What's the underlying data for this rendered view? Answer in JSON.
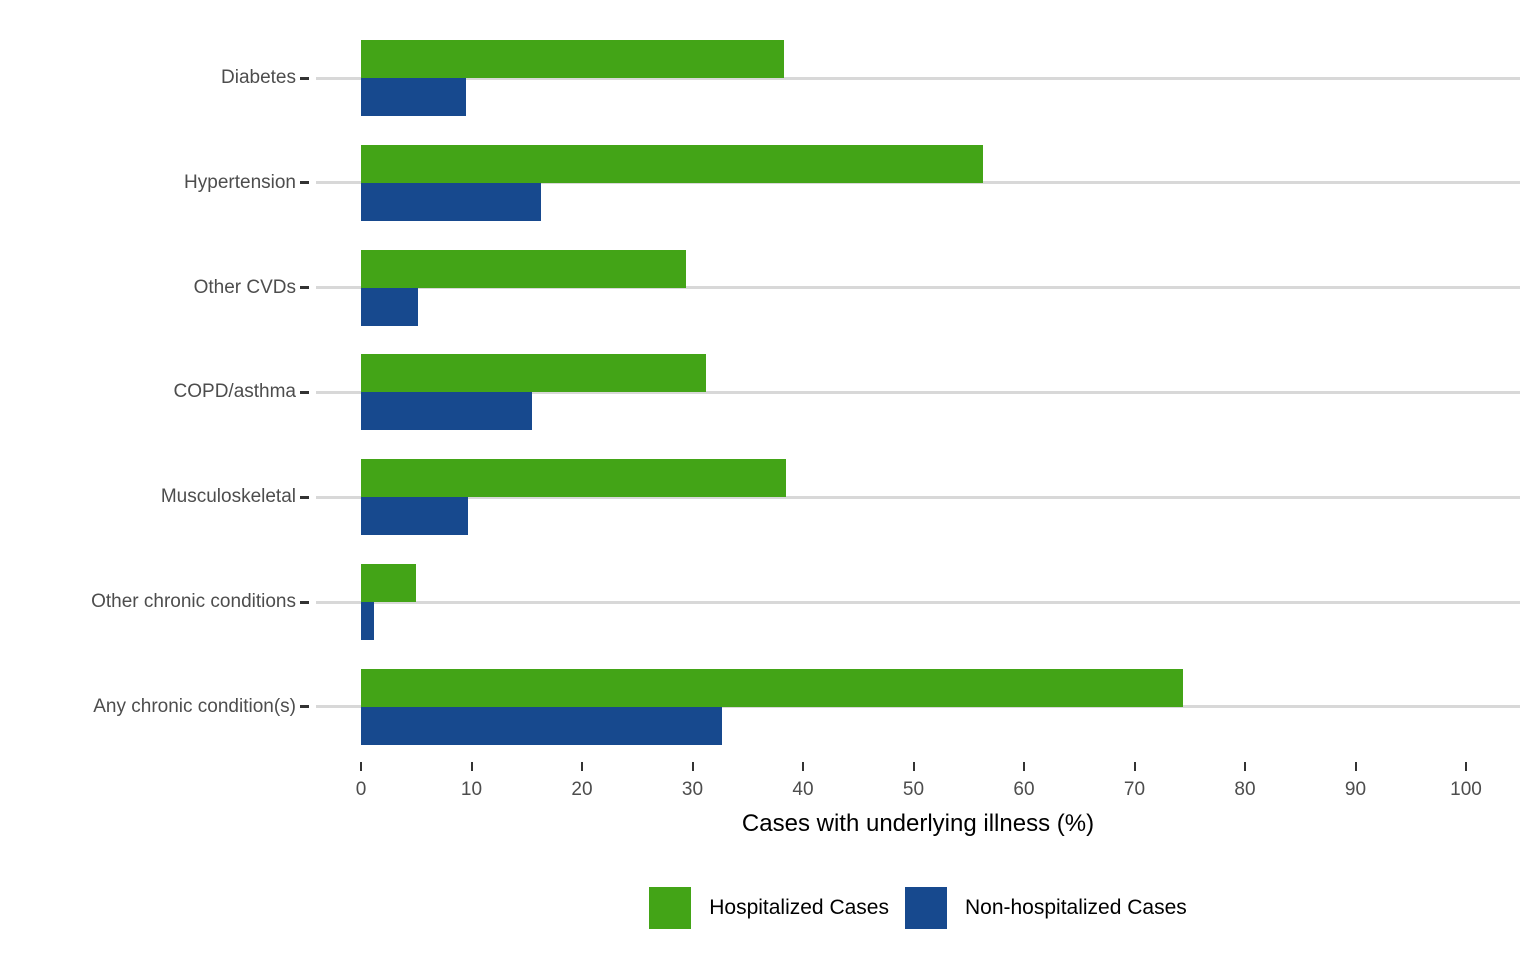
{
  "chart_data": {
    "type": "bar",
    "orientation": "horizontal",
    "title": "",
    "xlabel": "Cases with underlying illness (%)",
    "ylabel": "",
    "categories": [
      "Diabetes",
      "Hypertension",
      "Other CVDs",
      "COPD/asthma",
      "Musculoskeletal",
      "Other chronic conditions",
      "Any chronic condition(s)"
    ],
    "series": [
      {
        "name": "Hospitalized Cases",
        "color": "#43a417",
        "values": [
          38.3,
          56.3,
          29.4,
          31.2,
          38.5,
          5.0,
          74.4
        ]
      },
      {
        "name": "Non-hospitalized Cases",
        "color": "#17498e",
        "values": [
          9.5,
          16.3,
          5.2,
          15.5,
          9.7,
          1.2,
          32.7
        ]
      }
    ],
    "x_ticks": [
      0,
      10,
      20,
      30,
      40,
      50,
      60,
      70,
      80,
      90,
      100
    ],
    "xlim": [
      -4,
      105
    ],
    "grid": "horizontal-major-only",
    "legend_position": "bottom-center"
  },
  "colors": {
    "hospitalized": "#43a417",
    "non_hospitalized": "#17498e",
    "gridline": "#d8d8d8",
    "tick_mark": "#333333",
    "axis_text": "#4d4d4d",
    "axis_title": "#000000",
    "background": "#ffffff"
  }
}
